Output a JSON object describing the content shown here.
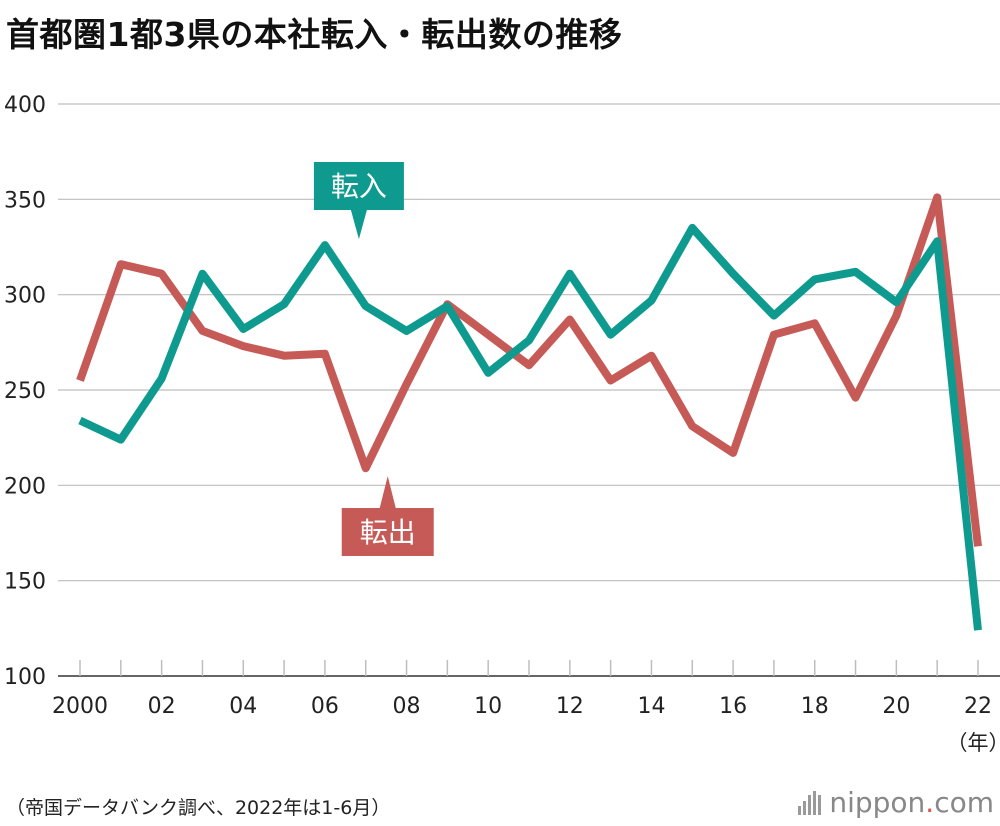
{
  "title": "首都圏1都3県の本社転入・転出数の推移",
  "source": "（帝国データバンク調べ、2022年は1-6月）",
  "brand": {
    "name": "nippon",
    "dot": ".",
    "suffix": "com"
  },
  "colors": {
    "inflow": "#0f9a90",
    "outflow": "#c65a57",
    "grid": "#bdbdbd",
    "axis": "#333333"
  },
  "chart_data": {
    "type": "line",
    "title": "首都圏1都3県の本社転入・転出数の推移",
    "xlabel": "（年）",
    "ylabel": "",
    "x": [
      2000,
      2001,
      2002,
      2003,
      2004,
      2005,
      2006,
      2007,
      2008,
      2009,
      2010,
      2011,
      2012,
      2013,
      2014,
      2015,
      2016,
      2017,
      2018,
      2019,
      2020,
      2021,
      2022
    ],
    "xtick_labels": [
      "2000",
      "02",
      "04",
      "06",
      "08",
      "10",
      "12",
      "14",
      "16",
      "18",
      "20",
      "22"
    ],
    "xtick_values": [
      2000,
      2002,
      2004,
      2006,
      2008,
      2010,
      2012,
      2014,
      2016,
      2018,
      2020,
      2022
    ],
    "ylim": [
      100,
      400
    ],
    "yticks": [
      100,
      150,
      200,
      250,
      300,
      350,
      400
    ],
    "grid": true,
    "series": [
      {
        "name": "転入",
        "values": [
          234,
          224,
          256,
          311,
          282,
          295,
          326,
          294,
          281,
          294,
          259,
          276,
          311,
          279,
          297,
          335,
          311,
          289,
          308,
          312,
          296,
          328,
          124
        ]
      },
      {
        "name": "転出",
        "values": [
          255,
          316,
          311,
          281,
          273,
          268,
          269,
          209,
          253,
          295,
          279,
          263,
          287,
          255,
          268,
          231,
          217,
          279,
          285,
          246,
          289,
          351,
          168
        ]
      }
    ]
  }
}
